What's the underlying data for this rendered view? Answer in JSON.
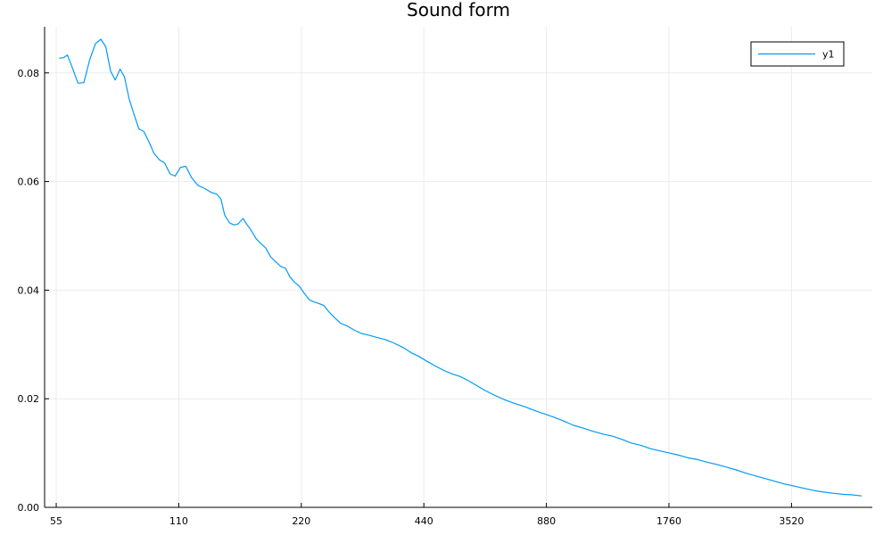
{
  "chart_data": {
    "type": "line",
    "title": "Sound form",
    "xlabel": "",
    "ylabel": "",
    "xscale": "log",
    "xlim": [
      51.5,
      5560
    ],
    "ylim": [
      0.0,
      0.0885
    ],
    "xticks": [
      {
        "value": 55,
        "label": "55"
      },
      {
        "value": 110,
        "label": "110"
      },
      {
        "value": 220,
        "label": "220"
      },
      {
        "value": 440,
        "label": "440"
      },
      {
        "value": 880,
        "label": "880"
      },
      {
        "value": 1760,
        "label": "1760"
      },
      {
        "value": 3520,
        "label": "3520"
      }
    ],
    "yticks": [
      {
        "value": 0.0,
        "label": "0.00"
      },
      {
        "value": 0.02,
        "label": "0.02"
      },
      {
        "value": 0.04,
        "label": "0.04"
      },
      {
        "value": 0.06,
        "label": "0.06"
      },
      {
        "value": 0.08,
        "label": "0.08"
      }
    ],
    "grid": true,
    "legend": {
      "position": "top-right"
    },
    "colors": {
      "series": "#009AFA",
      "axis": "#000000",
      "grid": "#EBEBEB"
    },
    "series": [
      {
        "name": "y1",
        "x": [
          55.9,
          57.3,
          58.6,
          60.3,
          62.2,
          64.3,
          66.5,
          68.7,
          70.8,
          72.8,
          74.8,
          76.8,
          78.9,
          80.9,
          83.1,
          85.3,
          87.8,
          90.3,
          92.8,
          95.6,
          98.6,
          101.6,
          104.7,
          107.8,
          111.1,
          114.5,
          118.1,
          122.5,
          127.6,
          132.1,
          136.2,
          139.6,
          142.6,
          146.6,
          150.3,
          153.8,
          158.2,
          162.0,
          165.3,
          170.6,
          175.5,
          179.8,
          185.0,
          190.5,
          195.6,
          201.4,
          206.0,
          211.4,
          217.6,
          223.8,
          230.2,
          237.0,
          243.6,
          249.6,
          256.6,
          264.9,
          274.8,
          285.3,
          297.6,
          309.6,
          322.6,
          337.3,
          353.7,
          370.5,
          389.8,
          409.1,
          427.8,
          447.8,
          470.3,
          493.2,
          515.6,
          539.9,
          567.3,
          594.1,
          623.6,
          658.1,
          695.6,
          737.4,
          780.9,
          824.9,
          870.5,
          919.2,
          971.1,
          1025.7,
          1083.5,
          1145.4,
          1210.8,
          1279.9,
          1352.0,
          1427.8,
          1504.6,
          1585.8,
          1673.0,
          1765.1,
          1861.6,
          1963.7,
          2071.7,
          2187.1,
          2309.4,
          2439.1,
          2575.9,
          2718.0,
          2871.4,
          3034.2,
          3206.3,
          3386.7,
          3579.4,
          3783.9,
          4000.0,
          4223.4,
          4456.6,
          4706.1,
          4967.8,
          5238.3
        ],
        "y": [
          0.0827,
          0.0828,
          0.0833,
          0.0809,
          0.0781,
          0.0782,
          0.0825,
          0.0854,
          0.0862,
          0.0848,
          0.0803,
          0.0787,
          0.0807,
          0.0793,
          0.0752,
          0.0725,
          0.0697,
          0.0692,
          0.0674,
          0.0652,
          0.064,
          0.0634,
          0.0614,
          0.061,
          0.0626,
          0.0628,
          0.0608,
          0.0593,
          0.0587,
          0.058,
          0.0577,
          0.0568,
          0.0538,
          0.0524,
          0.052,
          0.0522,
          0.0532,
          0.052,
          0.0511,
          0.0494,
          0.0485,
          0.0478,
          0.0461,
          0.0452,
          0.0444,
          0.044,
          0.0425,
          0.0415,
          0.0407,
          0.0394,
          0.0382,
          0.0378,
          0.0375,
          0.0372,
          0.0361,
          0.035,
          0.0339,
          0.0334,
          0.0326,
          0.032,
          0.0317,
          0.0313,
          0.0309,
          0.0303,
          0.0295,
          0.0285,
          0.0278,
          0.0269,
          0.026,
          0.0252,
          0.0246,
          0.0241,
          0.0233,
          0.0224,
          0.0215,
          0.0206,
          0.0198,
          0.0191,
          0.0185,
          0.0178,
          0.0172,
          0.0166,
          0.0159,
          0.0151,
          0.0146,
          0.014,
          0.0135,
          0.0131,
          0.0125,
          0.0118,
          0.0114,
          0.0108,
          0.0104,
          0.01,
          0.0096,
          0.0091,
          0.0088,
          0.0083,
          0.0079,
          0.0074,
          0.0069,
          0.0063,
          0.0058,
          0.0053,
          0.0048,
          0.0043,
          0.0039,
          0.0035,
          0.0031,
          0.0028,
          0.0026,
          0.0024,
          0.0023,
          0.0021
        ]
      }
    ]
  }
}
